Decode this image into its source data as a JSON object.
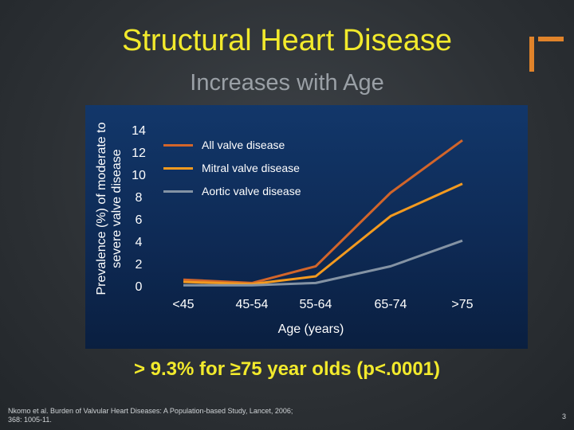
{
  "slide": {
    "title": "Structural Heart Disease",
    "subtitle": "Increases with Age",
    "conclusion": "> 9.3% for ≥75 year olds (p<.0001)",
    "footnote": "Nkomo et al. Burden of Valvular Heart Diseases: A Population-based Study, Lancet, 2006; 368: 1005-11.",
    "slide_number": "3"
  },
  "chart_data": {
    "type": "line",
    "title": "",
    "xlabel": "Age (years)",
    "ylabel": "Prevalence (%) of moderate to severe valve disease",
    "categories": [
      "<45",
      "45-54",
      "55-64",
      "65-74",
      ">75"
    ],
    "ylim": [
      0,
      14
    ],
    "yticks": [
      "0",
      "2",
      "4",
      "6",
      "8",
      "10",
      "12",
      "14"
    ],
    "legend_position": "top-left",
    "series": [
      {
        "name": "All valve disease",
        "color": "#d2652a",
        "values": [
          0.7,
          0.4,
          1.9,
          8.5,
          13.2
        ]
      },
      {
        "name": "Mitral valve disease",
        "color": "#f39a1f",
        "values": [
          0.5,
          0.3,
          1.0,
          6.4,
          9.3
        ]
      },
      {
        "name": "Aortic valve disease",
        "color": "#8493a4",
        "values": [
          0.2,
          0.2,
          0.4,
          1.9,
          4.2
        ]
      }
    ]
  }
}
